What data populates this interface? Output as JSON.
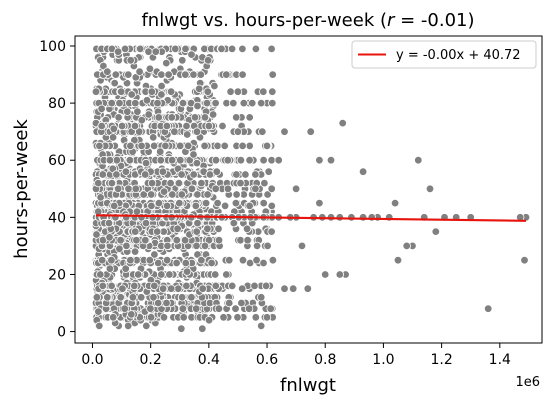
{
  "chart_data": {
    "type": "scatter",
    "title_prefix": "fnlwgt vs. hours-per-week (",
    "title_r": "r",
    "title_suffix": " = -0.01)",
    "xlabel": "fnlwgt",
    "ylabel": "hours-per-week",
    "x_offset_label": "1e6",
    "xlim": [
      -60000,
      1545000
    ],
    "ylim": [
      -4,
      103.5
    ],
    "xticks": [
      0,
      200000,
      400000,
      600000,
      800000,
      1000000,
      1200000,
      1400000
    ],
    "xtick_labels": [
      "0.0",
      "0.2",
      "0.4",
      "0.6",
      "0.8",
      "1.0",
      "1.2",
      "1.4"
    ],
    "yticks": [
      0,
      20,
      40,
      60,
      80,
      100
    ],
    "ytick_labels": [
      "0",
      "20",
      "40",
      "60",
      "80",
      "100"
    ],
    "grid": false,
    "legend_position": "top-right",
    "legend_label": "y = -0.00x + 40.72",
    "fit": {
      "slope": -1.3e-06,
      "intercept": 40.72,
      "x_range": [
        12000,
        1490000
      ]
    },
    "point_color": "#808080",
    "point_edge_color": "#ffffff",
    "line_color": "#e8130c",
    "dense_region": {
      "x_range": [
        12000,
        420000
      ],
      "y_range": [
        1,
        99
      ]
    },
    "outliers": [
      [
        1490000,
        40
      ],
      [
        1485000,
        25
      ],
      [
        1470000,
        40
      ],
      [
        1360000,
        8
      ],
      [
        1300000,
        40
      ],
      [
        1250000,
        40
      ],
      [
        1210000,
        40
      ],
      [
        1180000,
        35
      ],
      [
        1160000,
        50
      ],
      [
        1140000,
        40
      ],
      [
        1120000,
        60
      ],
      [
        1100000,
        30
      ],
      [
        1080000,
        30
      ],
      [
        1050000,
        25
      ],
      [
        1040000,
        45
      ],
      [
        1020000,
        40
      ],
      [
        980000,
        40
      ],
      [
        960000,
        40
      ],
      [
        930000,
        40
      ],
      [
        930000,
        56
      ],
      [
        890000,
        40
      ],
      [
        870000,
        20
      ],
      [
        850000,
        40
      ],
      [
        850000,
        20
      ],
      [
        820000,
        40
      ],
      [
        800000,
        20
      ],
      [
        790000,
        40
      ],
      [
        780000,
        45
      ],
      [
        760000,
        40
      ],
      [
        740000,
        15
      ],
      [
        720000,
        30
      ],
      [
        700000,
        40
      ],
      [
        690000,
        15
      ],
      [
        680000,
        40
      ],
      [
        660000,
        15
      ],
      [
        640000,
        40
      ],
      [
        620000,
        25
      ],
      [
        600000,
        5
      ],
      [
        580000,
        2
      ],
      [
        560000,
        50
      ],
      [
        540000,
        44
      ],
      [
        520000,
        70
      ],
      [
        500000,
        70
      ],
      [
        480000,
        99
      ],
      [
        460000,
        90
      ],
      [
        580000,
        80
      ],
      [
        660000,
        70
      ],
      [
        780000,
        60
      ],
      [
        820000,
        60
      ],
      [
        860000,
        73
      ],
      [
        750000,
        70
      ],
      [
        700000,
        50
      ],
      [
        640000,
        60
      ],
      [
        600000,
        65
      ],
      [
        560000,
        55
      ],
      [
        540000,
        60
      ],
      [
        520000,
        80
      ],
      [
        500000,
        84
      ],
      [
        460000,
        20
      ],
      [
        470000,
        10
      ]
    ]
  }
}
